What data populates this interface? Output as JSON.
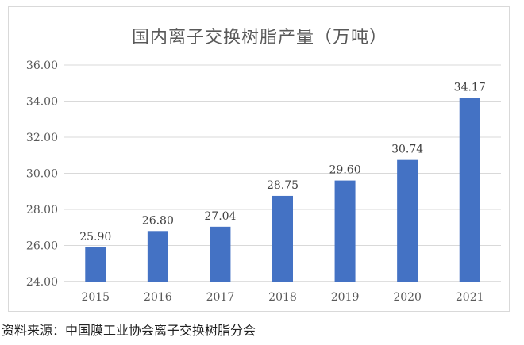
{
  "chart_data": {
    "type": "bar",
    "title": "国内离子交换树脂产量（万吨）",
    "categories": [
      "2015",
      "2016",
      "2017",
      "2018",
      "2019",
      "2020",
      "2021"
    ],
    "values": [
      25.9,
      26.8,
      27.04,
      28.75,
      29.6,
      30.74,
      34.17
    ],
    "data_labels": [
      "25.90",
      "26.80",
      "27.04",
      "28.75",
      "29.60",
      "30.74",
      "34.17"
    ],
    "ylim": [
      24,
      36
    ],
    "y_ticks": [
      "24.00",
      "26.00",
      "28.00",
      "30.00",
      "32.00",
      "34.00",
      "36.00"
    ],
    "xlabel": "",
    "ylabel": "",
    "grid": true,
    "legend": "none",
    "bar_color": "#4472C4"
  },
  "source": "资料来源：中国膜工业协会离子交换树脂分会"
}
